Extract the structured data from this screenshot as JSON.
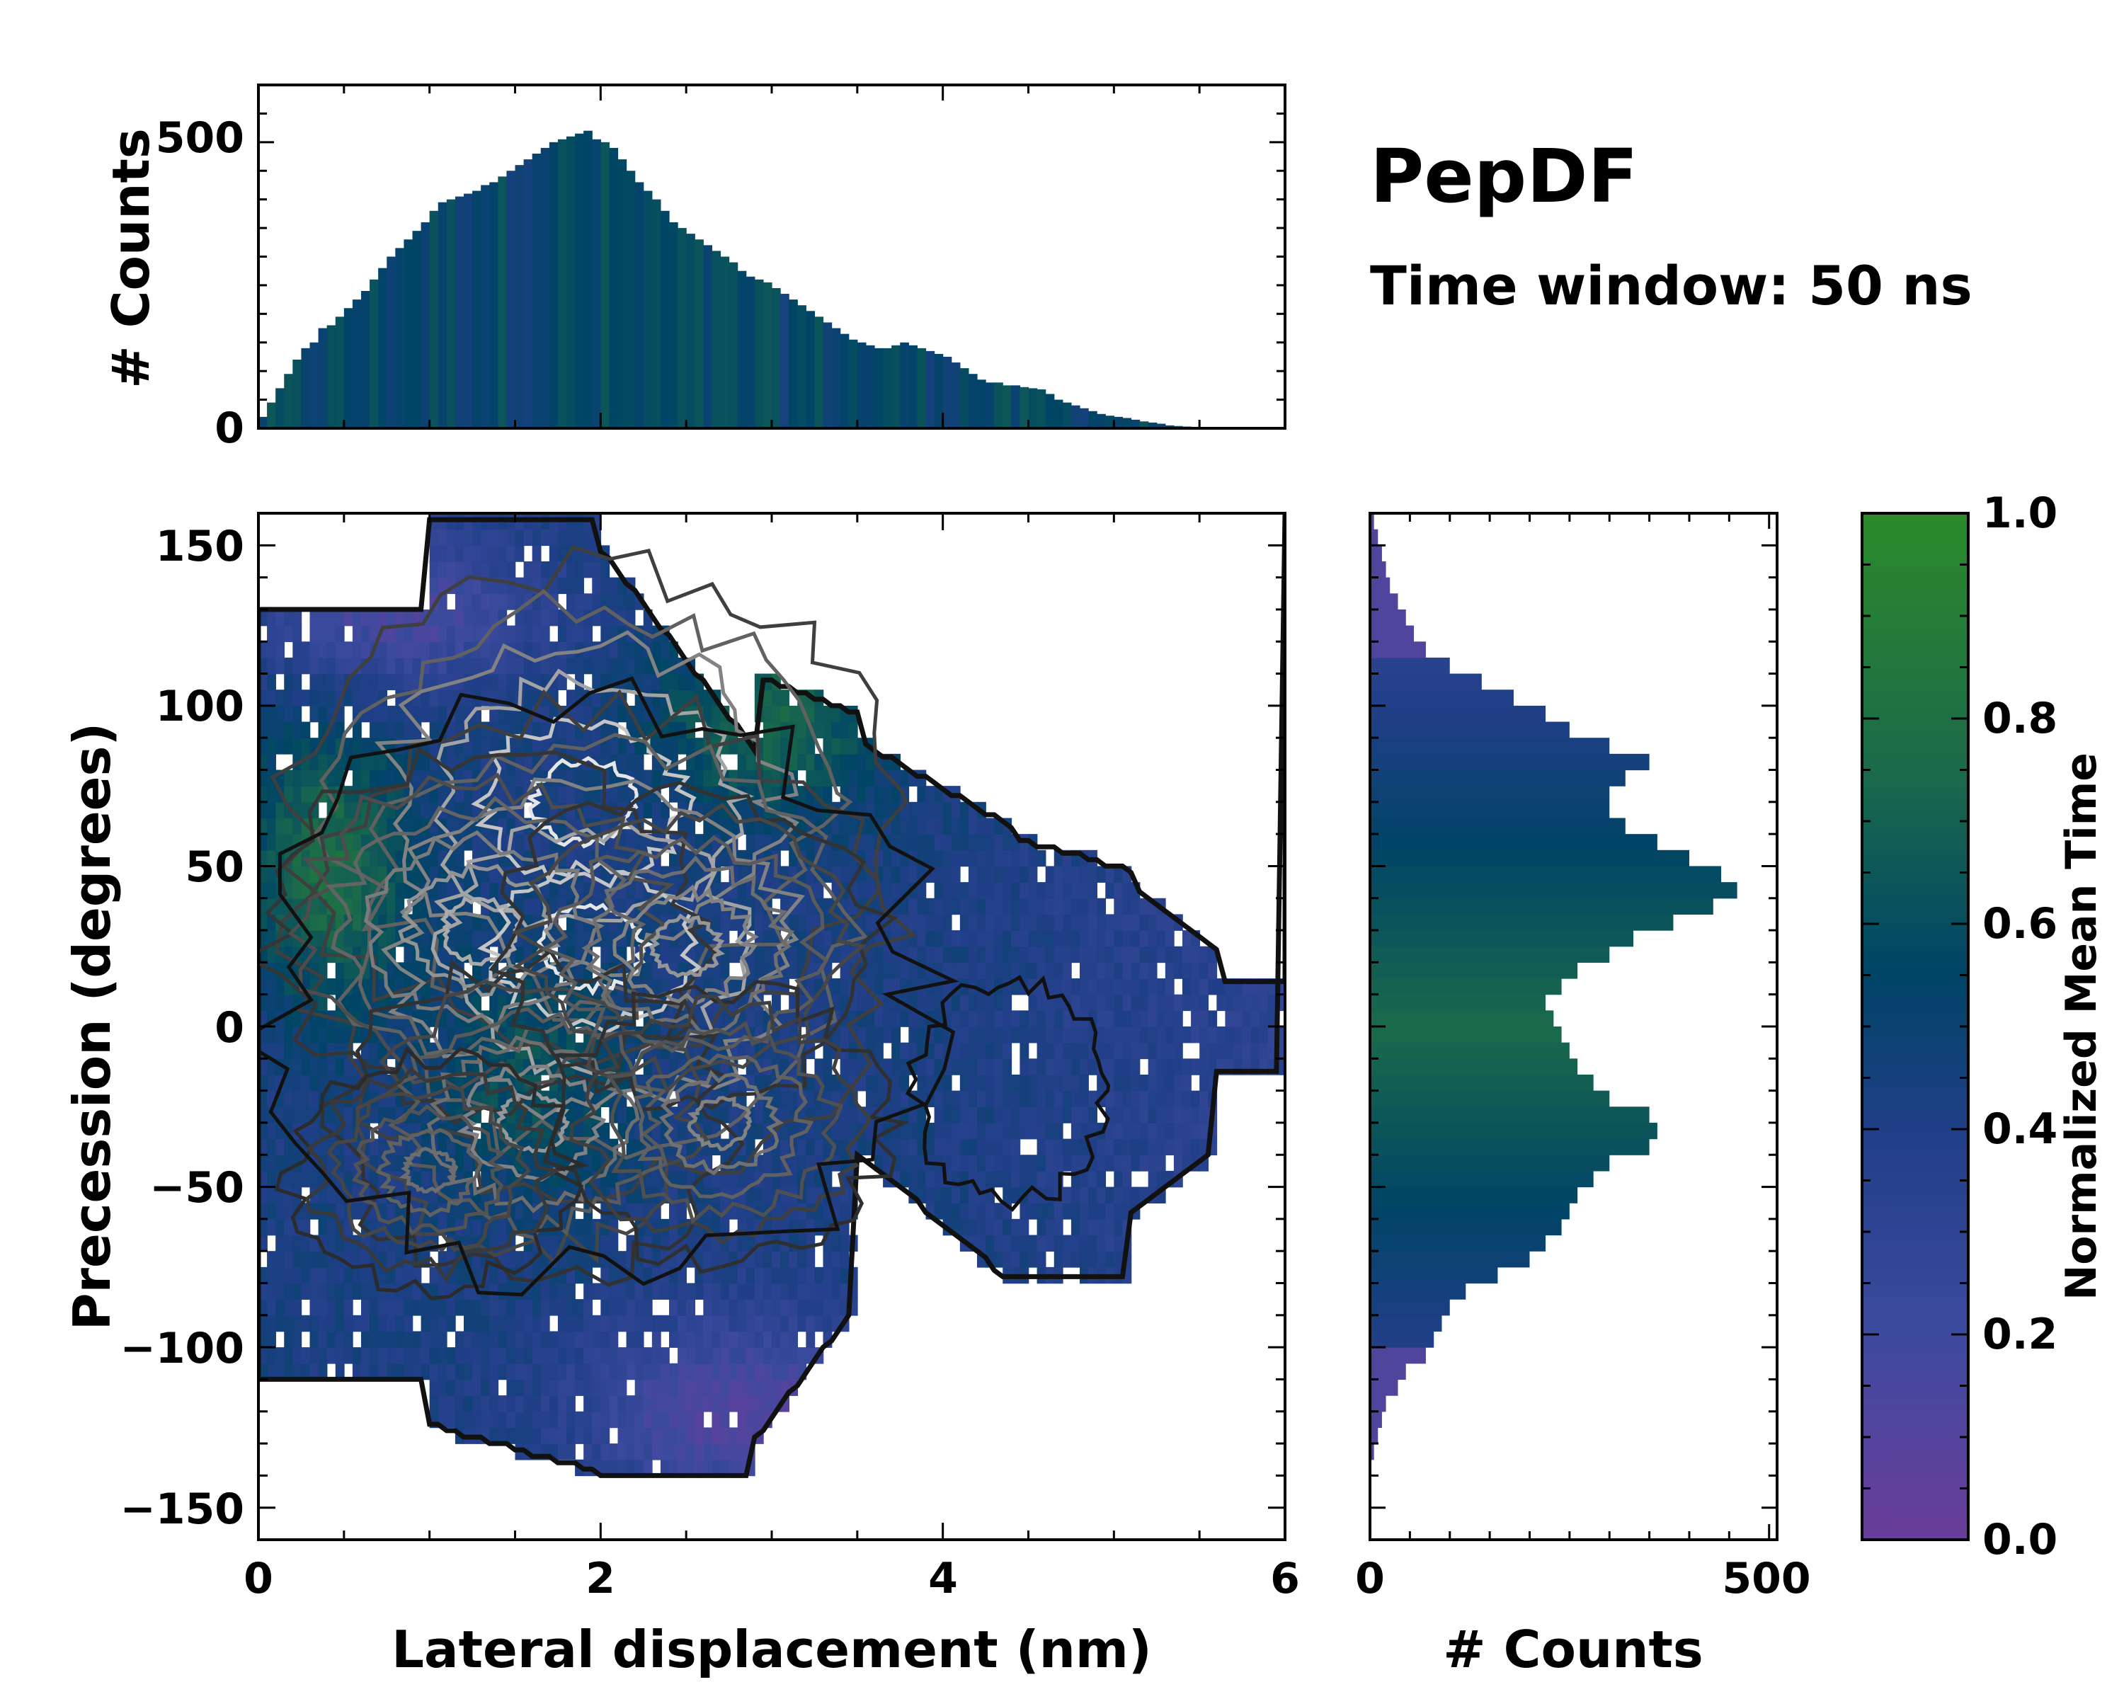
{
  "title": "PepDF",
  "subtitle": "Time window: 50 ns",
  "colors": {
    "stops": [
      "#6a3d9a",
      "#3d4a9e",
      "#203f87",
      "#004466",
      "#1b6a4a",
      "#2a8a2a"
    ],
    "contour": "#111111",
    "contour_light": "#d0d0d0"
  },
  "chart_data": [
    {
      "id": "top_hist",
      "type": "bar",
      "title": "",
      "xlabel": "",
      "ylabel": "# Counts",
      "xlim": [
        0,
        6
      ],
      "ylim": [
        0,
        600
      ],
      "yticks": [
        0,
        500
      ],
      "yticklabels": [
        "0",
        "500"
      ],
      "bin_width": 0.05,
      "bin_start": 0.0,
      "values": [
        20,
        45,
        70,
        95,
        120,
        140,
        150,
        175,
        180,
        195,
        210,
        225,
        240,
        260,
        280,
        300,
        315,
        330,
        345,
        360,
        380,
        395,
        400,
        405,
        410,
        415,
        425,
        430,
        440,
        450,
        460,
        470,
        480,
        490,
        500,
        505,
        510,
        515,
        520,
        505,
        500,
        490,
        470,
        450,
        430,
        415,
        400,
        380,
        360,
        350,
        340,
        330,
        320,
        310,
        300,
        290,
        275,
        265,
        260,
        255,
        245,
        235,
        225,
        215,
        205,
        195,
        185,
        175,
        165,
        155,
        150,
        145,
        140,
        140,
        145,
        150,
        145,
        140,
        135,
        130,
        125,
        115,
        105,
        95,
        85,
        80,
        80,
        75,
        75,
        72,
        70,
        68,
        60,
        50,
        45,
        40,
        35,
        30,
        25,
        22,
        20,
        18,
        15,
        12,
        10,
        8,
        5,
        4,
        3,
        2,
        1,
        1,
        0,
        0,
        0,
        0,
        0,
        0,
        0,
        0
      ]
    },
    {
      "id": "side_hist",
      "type": "bar",
      "orientation": "horizontal",
      "xlabel": "# Counts",
      "ylabel": "",
      "xlim": [
        0,
        510
      ],
      "xticks": [
        0,
        500
      ],
      "xticklabels": [
        "0",
        "500"
      ],
      "ylim": [
        -160,
        160
      ],
      "bin_width": 5,
      "bin_start": -160,
      "values": [
        0,
        0,
        0,
        0,
        0,
        5,
        10,
        15,
        20,
        35,
        45,
        70,
        80,
        90,
        100,
        120,
        160,
        200,
        220,
        240,
        250,
        260,
        280,
        300,
        350,
        360,
        350,
        300,
        280,
        260,
        250,
        240,
        230,
        220,
        240,
        260,
        300,
        330,
        380,
        430,
        460,
        440,
        400,
        360,
        320,
        300,
        300,
        320,
        350,
        300,
        250,
        220,
        180,
        140,
        100,
        70,
        55,
        45,
        35,
        25,
        20,
        15,
        10,
        5
      ]
    },
    {
      "id": "main_heatmap",
      "type": "heatmap",
      "xlabel": "Lateral displacement (nm)",
      "ylabel": "Precession (degrees)",
      "xlim": [
        0,
        6
      ],
      "ylim": [
        -160,
        160
      ],
      "xticks": [
        0,
        2,
        4,
        6
      ],
      "xticklabels": [
        "0",
        "2",
        "4",
        "6"
      ],
      "yticks": [
        -150,
        -100,
        -50,
        0,
        50,
        100,
        150
      ],
      "yticklabels": [
        "−150",
        "−100",
        "−50",
        "0",
        "50",
        "100",
        "150"
      ],
      "colorbar": {
        "label": "Normalized Mean Time",
        "range": [
          0,
          1
        ],
        "ticks": [
          0.0,
          0.2,
          0.4,
          0.6,
          0.8,
          1.0
        ],
        "ticklabels": [
          "0.0",
          "0.2",
          "0.4",
          "0.6",
          "0.8",
          "1.0"
        ]
      },
      "density_peaks": [
        {
          "x": 1.9,
          "y": 70,
          "w": 1.0
        },
        {
          "x": 1.95,
          "y": 25,
          "w": 1.0
        },
        {
          "x": 1.3,
          "y": 30,
          "w": 0.7
        },
        {
          "x": 1.6,
          "y": -30,
          "w": 0.6
        },
        {
          "x": 2.5,
          "y": 25,
          "w": 0.6
        },
        {
          "x": 2.7,
          "y": -30,
          "w": 0.5
        },
        {
          "x": 1.0,
          "y": -45,
          "w": 0.4
        }
      ]
    }
  ]
}
